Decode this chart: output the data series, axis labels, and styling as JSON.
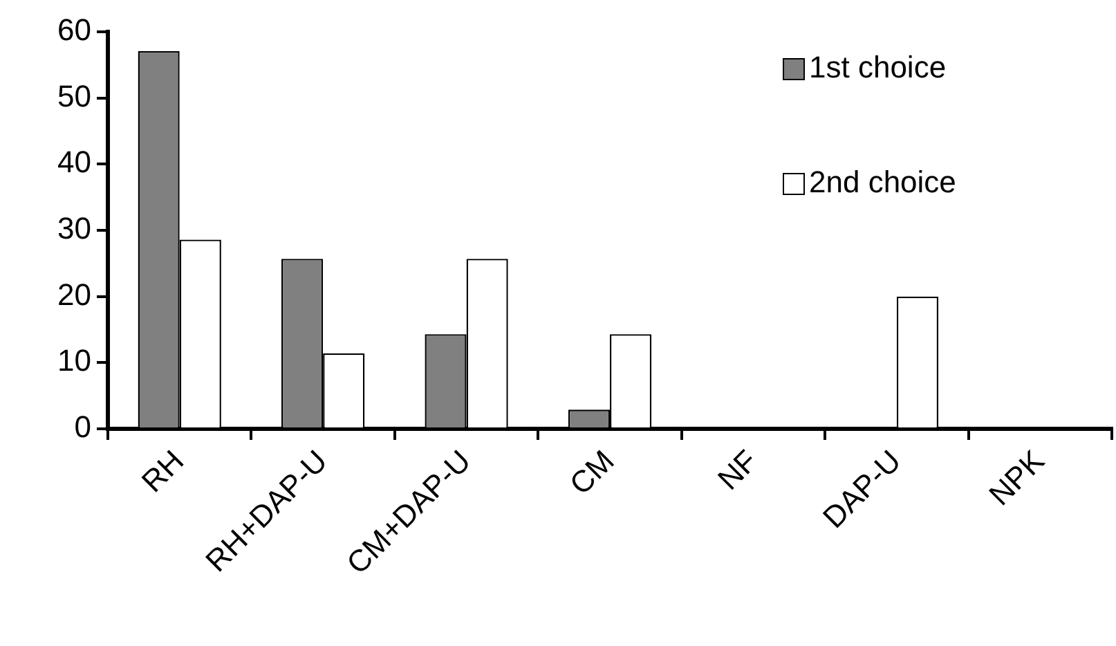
{
  "chart_data": {
    "type": "bar",
    "categories": [
      "RH",
      "RH+DAP-U",
      "CM+DAP-U",
      "CM",
      "NF",
      "DAP-U",
      "NPK"
    ],
    "series": [
      {
        "name": "1st choice",
        "color": "#808080",
        "values": [
          57.1,
          25.7,
          14.3,
          2.9,
          0,
          0,
          0
        ]
      },
      {
        "name": "2nd choice",
        "color": "#ffffff",
        "values": [
          28.6,
          11.4,
          25.7,
          14.3,
          0,
          20,
          0
        ]
      }
    ],
    "ylim": [
      0,
      60
    ],
    "yticks": [
      0,
      10,
      20,
      30,
      40,
      50,
      60
    ],
    "grid": false,
    "legend": "top right"
  }
}
